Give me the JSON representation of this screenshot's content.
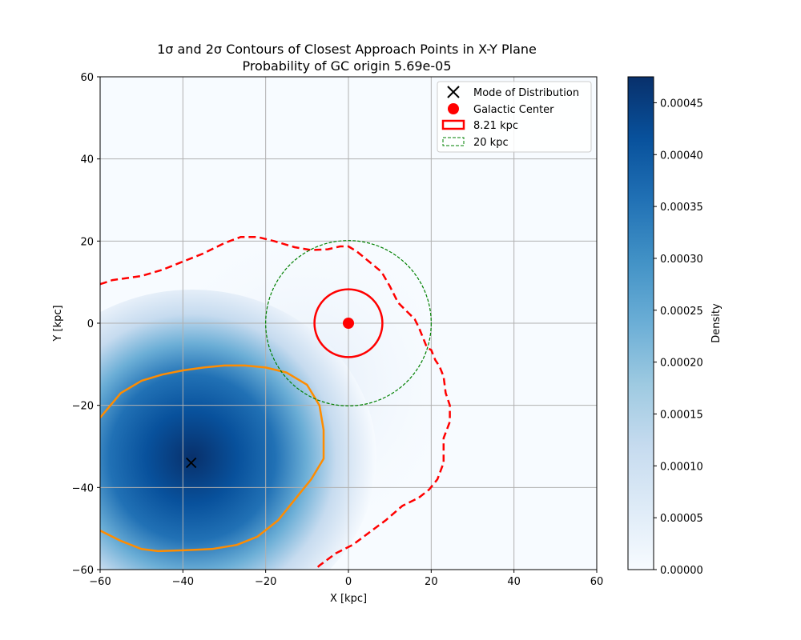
{
  "chart_data": {
    "type": "heatmap",
    "title": "1σ and 2σ Contours of Closest Approach Points in X-Y Plane",
    "subtitle": "Probability of GC origin 5.69e-05",
    "xlabel": "X [kpc]",
    "ylabel": "Y [kpc]",
    "xlim": [
      -60,
      60
    ],
    "ylim": [
      -60,
      60
    ],
    "xticks": [
      "−60",
      "−40",
      "−20",
      "0",
      "20",
      "40",
      "60"
    ],
    "yticks": [
      "−60",
      "−40",
      "−20",
      "0",
      "20",
      "40",
      "60"
    ],
    "grid": true,
    "legend_placement": "top-right",
    "density": {
      "peak": [
        -37,
        -33
      ],
      "colormap": "Blues"
    },
    "mode": {
      "label": "Mode of Distribution",
      "x": -38,
      "y": -34
    },
    "galactic_center": {
      "label": "Galactic Center",
      "x": 0,
      "y": 0,
      "color": "#ff0000"
    },
    "circles": [
      {
        "label": "8.21 kpc",
        "radius": 8.21,
        "color": "#ff0000",
        "style": "solid"
      },
      {
        "label": "20 kpc",
        "radius": 20,
        "color": "#008000",
        "style": "dashed"
      }
    ],
    "contour_1sigma": {
      "color": "#ff8c00",
      "points": [
        [
          -60,
          -23
        ],
        [
          -55,
          -17
        ],
        [
          -50,
          -14
        ],
        [
          -45,
          -12.5
        ],
        [
          -40,
          -11.5
        ],
        [
          -35,
          -10.8
        ],
        [
          -30,
          -10.3
        ],
        [
          -25,
          -10.3
        ],
        [
          -20,
          -10.8
        ],
        [
          -15,
          -12
        ],
        [
          -10,
          -15
        ],
        [
          -7,
          -20
        ],
        [
          -6,
          -26
        ],
        [
          -6,
          -33
        ],
        [
          -9,
          -38
        ],
        [
          -13,
          -43
        ],
        [
          -17,
          -48
        ],
        [
          -22,
          -52
        ],
        [
          -27,
          -54
        ],
        [
          -33,
          -55
        ],
        [
          -40,
          -55.3
        ],
        [
          -46,
          -55.5
        ],
        [
          -50,
          -55
        ],
        [
          -55,
          -53
        ],
        [
          -60,
          -50.5
        ]
      ]
    },
    "contour_2sigma": {
      "color": "#ff0000",
      "points": [
        [
          -60,
          9.5
        ],
        [
          -57,
          10.5
        ],
        [
          -50,
          11.5
        ],
        [
          -45,
          13
        ],
        [
          -40,
          15
        ],
        [
          -35,
          17
        ],
        [
          -30,
          19.5
        ],
        [
          -26,
          21
        ],
        [
          -22,
          21
        ],
        [
          -18,
          20
        ],
        [
          -13,
          18.5
        ],
        [
          -9,
          17.8
        ],
        [
          -5,
          18
        ],
        [
          -2,
          18.7
        ],
        [
          0,
          18.7
        ],
        [
          2,
          17.5
        ],
        [
          5,
          15
        ],
        [
          8,
          12.5
        ],
        [
          10,
          9
        ],
        [
          12,
          5
        ],
        [
          14,
          3
        ],
        [
          16,
          1
        ],
        [
          17,
          -1
        ],
        [
          19,
          -6
        ],
        [
          20,
          -6.5
        ],
        [
          21,
          -9
        ],
        [
          22,
          -10.5
        ],
        [
          23,
          -13
        ],
        [
          23.5,
          -17
        ],
        [
          24.5,
          -20
        ],
        [
          24.5,
          -24
        ],
        [
          23,
          -28
        ],
        [
          23,
          -34
        ],
        [
          21.5,
          -38
        ],
        [
          19.5,
          -40.5
        ],
        [
          17,
          -42.5
        ],
        [
          13,
          -44.5
        ],
        [
          9,
          -48
        ],
        [
          5,
          -51
        ],
        [
          1,
          -54
        ],
        [
          -3,
          -56
        ],
        [
          -7,
          -59
        ],
        [
          -8,
          -60
        ]
      ]
    },
    "colorbar": {
      "label": "Density",
      "min": 0,
      "max": 0.000475,
      "ticks": [
        "0.00000",
        "0.00005",
        "0.00010",
        "0.00015",
        "0.00020",
        "0.00025",
        "0.00030",
        "0.00035",
        "0.00040",
        "0.00045"
      ]
    }
  }
}
